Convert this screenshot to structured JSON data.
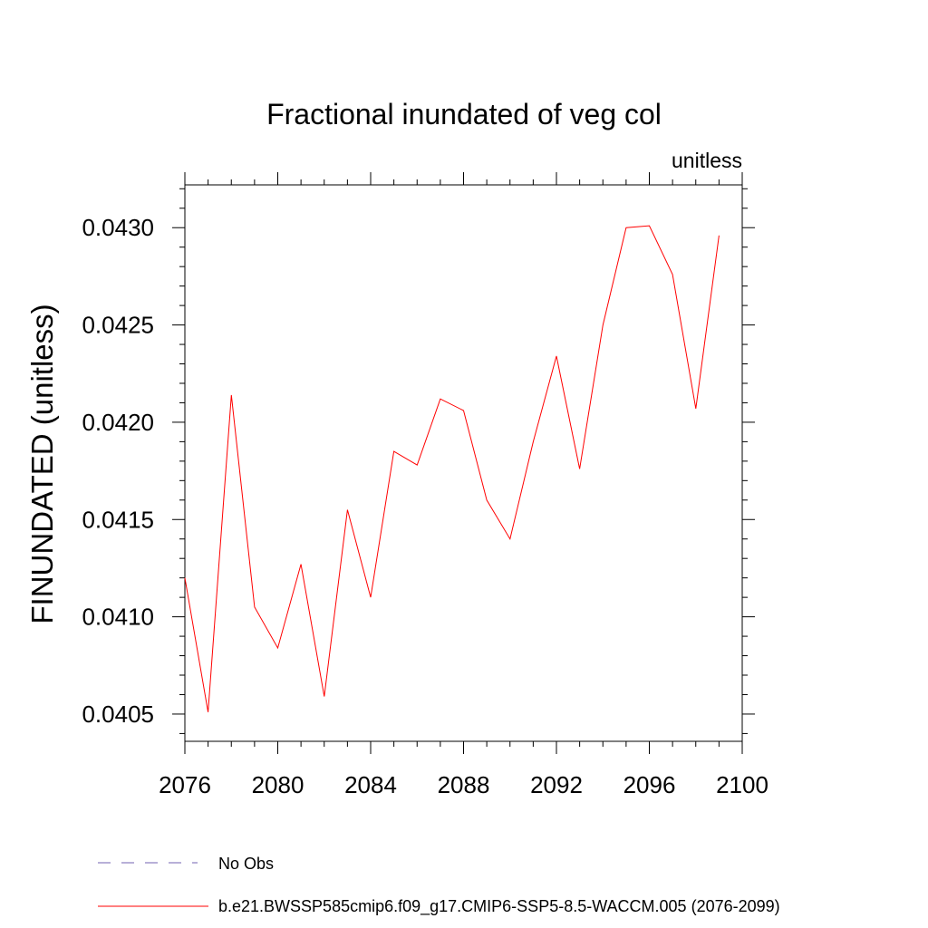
{
  "chart_data": {
    "type": "line",
    "title": "Fractional inundated of veg col",
    "units_label": "unitless",
    "ylabel": "FINUNDATED  (unitless)",
    "xlabel": "",
    "xlim": [
      2076,
      2100
    ],
    "ylim": [
      0.04036,
      0.04322
    ],
    "x_ticks": [
      "2076",
      "2080",
      "2084",
      "2088",
      "2092",
      "2096",
      "2100"
    ],
    "y_ticks": [
      "0.0405",
      "0.0410",
      "0.0415",
      "0.0420",
      "0.0425",
      "0.0430"
    ],
    "grid": false,
    "series": [
      {
        "name": "b.e21.BWSSP585cmip6.f09_g17.CMIP6-SSP5-8.5-WACCM.005 (2076-2099)",
        "color": "#ff0000",
        "x": [
          2076,
          2077,
          2078,
          2079,
          2080,
          2081,
          2082,
          2083,
          2084,
          2085,
          2086,
          2087,
          2088,
          2089,
          2090,
          2091,
          2092,
          2093,
          2094,
          2095,
          2096,
          2097,
          2098,
          2099
        ],
        "y": [
          0.0412,
          0.04051,
          0.04214,
          0.04105,
          0.04084,
          0.04127,
          0.04059,
          0.04155,
          0.0411,
          0.04185,
          0.04178,
          0.04212,
          0.04206,
          0.0416,
          0.0414,
          0.0419,
          0.04234,
          0.04176,
          0.0425,
          0.043,
          0.04301,
          0.04276,
          0.04207,
          0.04296
        ]
      }
    ],
    "legend": [
      {
        "label": "No Obs",
        "color": "#7060b0",
        "style": "dashed"
      },
      {
        "label": "b.e21.BWSSP585cmip6.f09_g17.CMIP6-SSP5-8.5-WACCM.005 (2076-2099)",
        "color": "#ff0000",
        "style": "solid"
      }
    ],
    "legend_position": "bottom-left"
  }
}
